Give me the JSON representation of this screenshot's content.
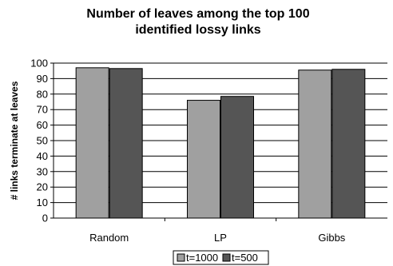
{
  "chart_data": {
    "type": "bar",
    "title_lines": [
      "Number of leaves among the top 100",
      "identified lossy links"
    ],
    "categories": [
      "Random",
      "LP",
      "Gibbs"
    ],
    "series": [
      {
        "name": "t=1000",
        "values": [
          97,
          76,
          95.5
        ],
        "color": "#a0a0a0"
      },
      {
        "name": "t=500",
        "values": [
          96.5,
          78.5,
          96
        ],
        "color": "#555555"
      }
    ],
    "ylabel": "# links terminate at leaves",
    "ylim": [
      0,
      100
    ],
    "yticks": [
      0,
      10,
      20,
      30,
      40,
      50,
      60,
      70,
      80,
      90,
      100
    ],
    "grid": true,
    "legend_position": "bottom-center"
  }
}
